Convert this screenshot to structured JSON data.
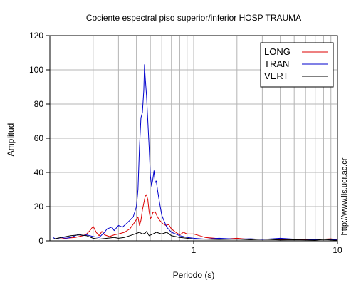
{
  "chart_data": {
    "type": "line",
    "title": "Cociente espectral piso superior/inferior  HOSP TRAUMA",
    "xlabel": "Periodo (s)",
    "ylabel": "Amplitud",
    "x_scale": "log",
    "xlim": [
      0.1,
      10
    ],
    "ylim": [
      0,
      120
    ],
    "x_tick_labels": [
      {
        "value": 1,
        "label": "1"
      },
      {
        "value": 10,
        "label": "10"
      }
    ],
    "y_ticks": [
      0,
      20,
      40,
      60,
      80,
      100,
      120
    ],
    "grid": true,
    "legend_position": "top-right",
    "side_note": "http://www.lis.ucr.ac.cr",
    "series": [
      {
        "name": "LONG",
        "color": "#dd0000",
        "points": [
          [
            0.115,
            1.0
          ],
          [
            0.13,
            1.5
          ],
          [
            0.15,
            2.0
          ],
          [
            0.17,
            3.0
          ],
          [
            0.18,
            4.0
          ],
          [
            0.19,
            6.0
          ],
          [
            0.2,
            8.5
          ],
          [
            0.21,
            5.0
          ],
          [
            0.22,
            3.0
          ],
          [
            0.23,
            5.5
          ],
          [
            0.24,
            3.5
          ],
          [
            0.26,
            2.5
          ],
          [
            0.28,
            3.5
          ],
          [
            0.3,
            4.0
          ],
          [
            0.33,
            5.0
          ],
          [
            0.36,
            7.0
          ],
          [
            0.39,
            11.0
          ],
          [
            0.41,
            14.0
          ],
          [
            0.42,
            9.0
          ],
          [
            0.43,
            12.0
          ],
          [
            0.44,
            18.0
          ],
          [
            0.45,
            22.0
          ],
          [
            0.46,
            26.0
          ],
          [
            0.47,
            27.0
          ],
          [
            0.48,
            24.0
          ],
          [
            0.49,
            17.0
          ],
          [
            0.5,
            13.0
          ],
          [
            0.51,
            14.0
          ],
          [
            0.52,
            16.5
          ],
          [
            0.54,
            17.0
          ],
          [
            0.56,
            14.0
          ],
          [
            0.58,
            12.0
          ],
          [
            0.61,
            10.0
          ],
          [
            0.64,
            9.0
          ],
          [
            0.67,
            9.5
          ],
          [
            0.7,
            7.0
          ],
          [
            0.75,
            5.0
          ],
          [
            0.8,
            3.5
          ],
          [
            0.85,
            5.0
          ],
          [
            0.9,
            4.0
          ],
          [
            1.0,
            4.0
          ],
          [
            1.1,
            3.0
          ],
          [
            1.2,
            2.0
          ],
          [
            1.4,
            1.5
          ],
          [
            1.6,
            1.0
          ],
          [
            2.0,
            1.5
          ],
          [
            2.5,
            0.8
          ],
          [
            3.0,
            1.0
          ],
          [
            4.0,
            0.8
          ],
          [
            5.0,
            1.0
          ],
          [
            6.0,
            0.6
          ],
          [
            7.0,
            0.8
          ],
          [
            8.0,
            1.0
          ],
          [
            9.0,
            1.2
          ],
          [
            10.0,
            0.5
          ]
        ]
      },
      {
        "name": "TRAN",
        "color": "#0000cc",
        "points": [
          [
            0.105,
            2.0
          ],
          [
            0.11,
            1.0
          ],
          [
            0.12,
            2.0
          ],
          [
            0.13,
            1.5
          ],
          [
            0.14,
            2.0
          ],
          [
            0.15,
            3.0
          ],
          [
            0.16,
            4.0
          ],
          [
            0.17,
            3.0
          ],
          [
            0.18,
            3.5
          ],
          [
            0.19,
            3.0
          ],
          [
            0.2,
            2.5
          ],
          [
            0.22,
            2.0
          ],
          [
            0.24,
            5.0
          ],
          [
            0.25,
            7.0
          ],
          [
            0.27,
            8.0
          ],
          [
            0.28,
            6.0
          ],
          [
            0.3,
            9.0
          ],
          [
            0.32,
            8.0
          ],
          [
            0.34,
            10.0
          ],
          [
            0.36,
            12.0
          ],
          [
            0.38,
            14.0
          ],
          [
            0.4,
            20.0
          ],
          [
            0.41,
            30.0
          ],
          [
            0.42,
            55.0
          ],
          [
            0.43,
            72.0
          ],
          [
            0.44,
            75.0
          ],
          [
            0.45,
            88.0
          ],
          [
            0.455,
            103.0
          ],
          [
            0.46,
            96.0
          ],
          [
            0.47,
            85.0
          ],
          [
            0.48,
            70.0
          ],
          [
            0.49,
            55.0
          ],
          [
            0.5,
            38.0
          ],
          [
            0.51,
            32.0
          ],
          [
            0.52,
            36.0
          ],
          [
            0.53,
            41.0
          ],
          [
            0.54,
            34.0
          ],
          [
            0.55,
            35.0
          ],
          [
            0.56,
            30.0
          ],
          [
            0.58,
            22.0
          ],
          [
            0.6,
            15.0
          ],
          [
            0.62,
            12.0
          ],
          [
            0.65,
            8.0
          ],
          [
            0.7,
            5.0
          ],
          [
            0.75,
            4.0
          ],
          [
            0.8,
            3.0
          ],
          [
            0.9,
            2.0
          ],
          [
            1.0,
            1.5
          ],
          [
            1.2,
            1.0
          ],
          [
            1.5,
            1.5
          ],
          [
            2.0,
            1.0
          ],
          [
            2.5,
            1.2
          ],
          [
            3.0,
            0.8
          ],
          [
            4.0,
            1.5
          ],
          [
            5.0,
            1.0
          ],
          [
            6.0,
            1.0
          ],
          [
            7.0,
            0.6
          ],
          [
            8.0,
            1.0
          ],
          [
            9.0,
            0.8
          ],
          [
            10.0,
            0.5
          ]
        ]
      },
      {
        "name": "VERT",
        "color": "#000000",
        "points": [
          [
            0.105,
            1.0
          ],
          [
            0.12,
            2.0
          ],
          [
            0.14,
            3.0
          ],
          [
            0.16,
            3.5
          ],
          [
            0.18,
            3.0
          ],
          [
            0.2,
            1.5
          ],
          [
            0.22,
            1.0
          ],
          [
            0.25,
            1.5
          ],
          [
            0.28,
            2.0
          ],
          [
            0.3,
            1.5
          ],
          [
            0.33,
            2.0
          ],
          [
            0.36,
            3.0
          ],
          [
            0.39,
            4.0
          ],
          [
            0.42,
            5.0
          ],
          [
            0.44,
            4.0
          ],
          [
            0.46,
            4.5
          ],
          [
            0.47,
            5.5
          ],
          [
            0.49,
            3.0
          ],
          [
            0.52,
            4.0
          ],
          [
            0.55,
            5.0
          ],
          [
            0.6,
            4.0
          ],
          [
            0.65,
            5.0
          ],
          [
            0.7,
            3.0
          ],
          [
            0.8,
            2.0
          ],
          [
            0.9,
            1.5
          ],
          [
            1.0,
            1.0
          ],
          [
            1.2,
            1.0
          ],
          [
            1.5,
            0.8
          ],
          [
            2.0,
            1.0
          ],
          [
            2.5,
            0.6
          ],
          [
            3.0,
            1.0
          ],
          [
            4.0,
            0.5
          ],
          [
            5.0,
            0.6
          ],
          [
            6.0,
            0.5
          ],
          [
            7.0,
            0.4
          ],
          [
            8.0,
            0.8
          ],
          [
            9.0,
            0.5
          ],
          [
            10.0,
            0.3
          ]
        ]
      }
    ]
  }
}
